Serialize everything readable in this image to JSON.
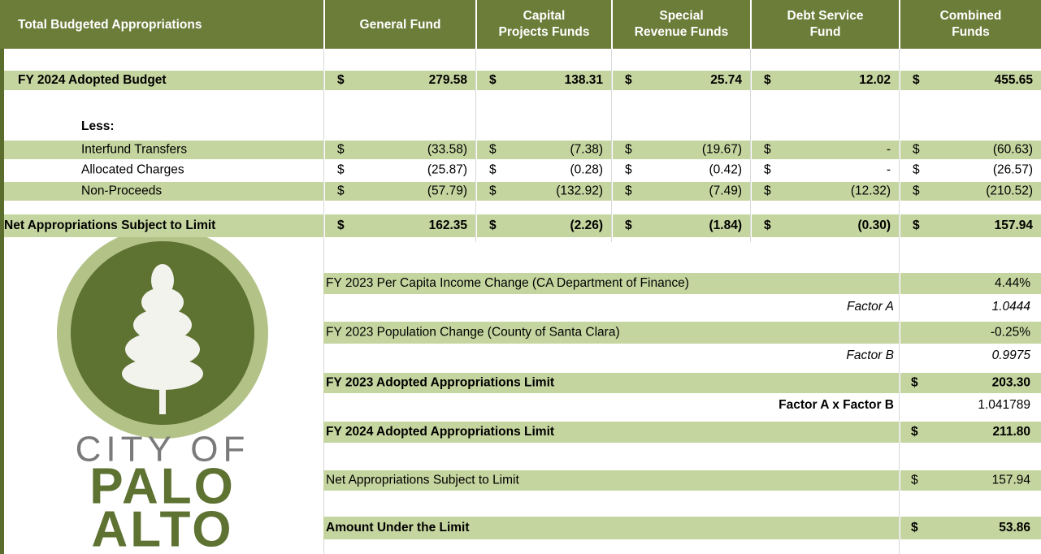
{
  "table": {
    "header": [
      [
        "Total Budgeted Appropriations"
      ],
      [
        "General Fund"
      ],
      [
        "Capital",
        "Projects Funds"
      ],
      [
        "Special",
        "Revenue Funds"
      ],
      [
        "Debt Service",
        "Fund"
      ],
      [
        "Combined",
        "Funds"
      ]
    ],
    "rows": [
      {
        "label": "FY 2024 Adopted Budget",
        "cells": [
          [
            "$",
            "279.58"
          ],
          [
            "$",
            "138.31"
          ],
          [
            "$",
            "25.74"
          ],
          [
            "$",
            "12.02"
          ],
          [
            "$",
            "455.65"
          ]
        ]
      },
      {
        "label": "Less:",
        "cells": []
      },
      {
        "label": "Interfund Transfers",
        "cells": [
          [
            "$",
            "(33.58)"
          ],
          [
            "$",
            "(7.38)"
          ],
          [
            "$",
            "(19.67)"
          ],
          [
            "$",
            "-"
          ],
          [
            "$",
            "(60.63)"
          ]
        ]
      },
      {
        "label": "Allocated Charges",
        "cells": [
          [
            "$",
            "(25.87)"
          ],
          [
            "$",
            "(0.28)"
          ],
          [
            "$",
            "(0.42)"
          ],
          [
            "$",
            "-"
          ],
          [
            "$",
            "(26.57)"
          ]
        ]
      },
      {
        "label": "Non-Proceeds",
        "cells": [
          [
            "$",
            "(57.79)"
          ],
          [
            "$",
            "(132.92)"
          ],
          [
            "$",
            "(7.49)"
          ],
          [
            "$",
            "(12.32)"
          ],
          [
            "$",
            "(210.52)"
          ]
        ]
      },
      {
        "label": "Net Appropriations Subject to Limit",
        "cells": [
          [
            "$",
            "162.35"
          ],
          [
            "$",
            "(2.26)"
          ],
          [
            "$",
            "(1.84)"
          ],
          [
            "$",
            "(0.30)"
          ],
          [
            "$",
            "157.94"
          ]
        ]
      }
    ]
  },
  "limit": {
    "rows": [
      {
        "label": "FY 2023 Per Capita Income Change (CA Department of Finance)",
        "value": "4.44%"
      },
      {
        "label": "Factor A",
        "value": "1.0444"
      },
      {
        "label": "FY 2023 Population Change (County of Santa Clara)",
        "value": "-0.25%"
      },
      {
        "label": "Factor B",
        "value": "0.9975"
      },
      {
        "label": "FY 2023 Adopted Appropriations Limit",
        "symbol": "$",
        "value": "203.30"
      },
      {
        "label": "Factor A x Factor B",
        "value": "1.041789"
      },
      {
        "label": "FY 2024 Adopted Appropriations Limit",
        "symbol": "$",
        "value": "211.80"
      },
      {
        "label": "Net Appropriations Subject to Limit",
        "symbol": "$",
        "value": "157.94"
      },
      {
        "label": "Amount Under the Limit",
        "symbol": "$",
        "value": "53.86"
      }
    ]
  },
  "logo": {
    "line1": "CITY OF",
    "line2": "PALO",
    "line3": "ALTO"
  }
}
